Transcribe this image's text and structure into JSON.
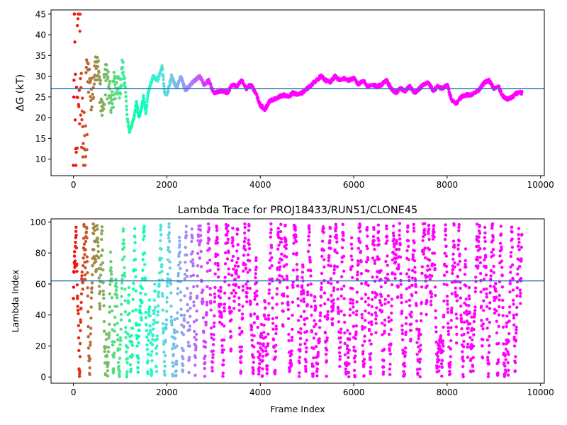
{
  "chart_data": [
    {
      "type": "scatter",
      "title": "",
      "xlabel": "",
      "ylabel": "ΔG (kT)",
      "xlim": [
        -480,
        10080
      ],
      "ylim": [
        6,
        46
      ],
      "xticks": [
        0,
        2000,
        4000,
        6000,
        8000,
        10000
      ],
      "yticks": [
        10,
        15,
        20,
        25,
        30,
        35,
        40,
        45
      ],
      "xtick_labels": [
        "0",
        "2000",
        "4000",
        "6000",
        "8000",
        "10000"
      ],
      "ytick_labels": [
        "10",
        "15",
        "20",
        "25",
        "30",
        "35",
        "40",
        "45"
      ],
      "hline": 27.0,
      "hline_color": "#1f77b4",
      "colormap": "rainbow",
      "x_max": 9600,
      "grid": false,
      "series_description_points": [
        [
          0,
          10
        ],
        [
          20,
          45
        ],
        [
          60,
          12
        ],
        [
          100,
          40
        ],
        [
          150,
          28
        ],
        [
          200,
          15
        ],
        [
          250,
          8.5
        ],
        [
          300,
          30
        ],
        [
          400,
          25
        ],
        [
          500,
          34
        ],
        [
          600,
          24
        ],
        [
          700,
          29
        ],
        [
          800,
          25
        ],
        [
          900,
          28
        ],
        [
          1000,
          27
        ],
        [
          1050,
          33
        ],
        [
          1100,
          29
        ],
        [
          1150,
          20
        ],
        [
          1200,
          16.5
        ],
        [
          1300,
          20
        ],
        [
          1350,
          24
        ],
        [
          1400,
          20
        ],
        [
          1450,
          22
        ],
        [
          1500,
          25
        ],
        [
          1550,
          21
        ],
        [
          1600,
          26
        ],
        [
          1700,
          30
        ],
        [
          1800,
          29
        ],
        [
          1900,
          32.5
        ],
        [
          1950,
          26
        ],
        [
          2000,
          25.5
        ],
        [
          2100,
          30
        ],
        [
          2200,
          27
        ],
        [
          2300,
          30
        ],
        [
          2400,
          26.5
        ],
        [
          2500,
          28
        ],
        [
          2600,
          29
        ],
        [
          2700,
          30
        ],
        [
          2800,
          28
        ],
        [
          2900,
          29
        ],
        [
          3000,
          26
        ],
        [
          3200,
          26.5
        ],
        [
          3300,
          26
        ],
        [
          3400,
          28
        ],
        [
          3500,
          27.5
        ],
        [
          3600,
          29
        ],
        [
          3700,
          27
        ],
        [
          3800,
          28
        ],
        [
          3900,
          26
        ],
        [
          4000,
          23
        ],
        [
          4100,
          22
        ],
        [
          4200,
          24
        ],
        [
          4300,
          24.5
        ],
        [
          4400,
          25
        ],
        [
          4500,
          25.5
        ],
        [
          4600,
          25
        ],
        [
          4700,
          26
        ],
        [
          4800,
          25.5
        ],
        [
          4900,
          26
        ],
        [
          5000,
          27
        ],
        [
          5100,
          28
        ],
        [
          5200,
          29
        ],
        [
          5300,
          30
        ],
        [
          5400,
          29
        ],
        [
          5500,
          28.5
        ],
        [
          5600,
          30
        ],
        [
          5700,
          29
        ],
        [
          5800,
          29.5
        ],
        [
          5900,
          29
        ],
        [
          6000,
          29.5
        ],
        [
          6100,
          28
        ],
        [
          6200,
          29
        ],
        [
          6300,
          27.5
        ],
        [
          6400,
          28
        ],
        [
          6500,
          27.5
        ],
        [
          6600,
          28
        ],
        [
          6700,
          29
        ],
        [
          6800,
          27
        ],
        [
          6900,
          26
        ],
        [
          7000,
          27
        ],
        [
          7100,
          26.5
        ],
        [
          7200,
          27.5
        ],
        [
          7300,
          26
        ],
        [
          7400,
          27
        ],
        [
          7500,
          28
        ],
        [
          7600,
          28.5
        ],
        [
          7700,
          26.5
        ],
        [
          7800,
          27.5
        ],
        [
          7900,
          27
        ],
        [
          8000,
          28
        ],
        [
          8100,
          24
        ],
        [
          8200,
          23.5
        ],
        [
          8300,
          25
        ],
        [
          8400,
          25.5
        ],
        [
          8500,
          25.5
        ],
        [
          8600,
          26
        ],
        [
          8700,
          27
        ],
        [
          8800,
          28.5
        ],
        [
          8900,
          29
        ],
        [
          9000,
          27
        ],
        [
          9100,
          27.5
        ],
        [
          9200,
          25
        ],
        [
          9300,
          24.5
        ],
        [
          9400,
          25
        ],
        [
          9500,
          26
        ],
        [
          9600,
          26
        ]
      ]
    },
    {
      "type": "scatter",
      "title": "Lambda Trace for PROJ18433/RUN51/CLONE45",
      "xlabel": "Frame Index",
      "ylabel": "Lambda Index",
      "xlim": [
        -480,
        10080
      ],
      "ylim": [
        -4,
        102
      ],
      "xticks": [
        0,
        2000,
        4000,
        6000,
        8000,
        10000
      ],
      "yticks": [
        0,
        20,
        40,
        60,
        80,
        100
      ],
      "xtick_labels": [
        "0",
        "2000",
        "4000",
        "6000",
        "8000",
        "10000"
      ],
      "ytick_labels": [
        "0",
        "20",
        "40",
        "60",
        "80",
        "100"
      ],
      "hline": 62,
      "hline_color": "#1f77b4",
      "colormap": "rainbow",
      "x_max": 9600,
      "lambda_min": 0,
      "lambda_max": 99,
      "grid": false
    }
  ]
}
